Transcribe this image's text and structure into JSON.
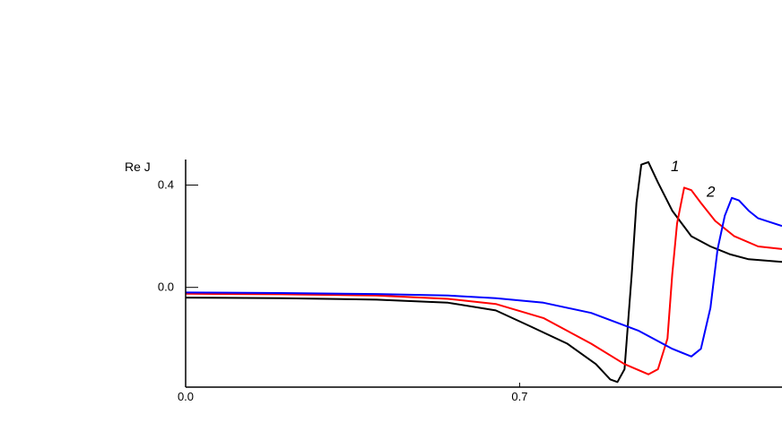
{
  "chart_data": {
    "type": "line",
    "ylabel": "Re J",
    "xlabel": "",
    "xlim": [
      0.0,
      1.25
    ],
    "ylim": [
      -0.39,
      0.5
    ],
    "x_ticks": [
      "0.0",
      "0.7"
    ],
    "x_tick_values": [
      0.0,
      0.7
    ],
    "y_ticks": [
      "0.4",
      "0.0"
    ],
    "y_tick_values": [
      0.4,
      0.0
    ],
    "grid": false,
    "series": [
      {
        "name": "1",
        "color": "#000000",
        "points": [
          [
            0.0,
            -0.04
          ],
          [
            0.2,
            -0.042
          ],
          [
            0.4,
            -0.048
          ],
          [
            0.55,
            -0.06
          ],
          [
            0.65,
            -0.09
          ],
          [
            0.72,
            -0.15
          ],
          [
            0.8,
            -0.22
          ],
          [
            0.86,
            -0.3
          ],
          [
            0.89,
            -0.36
          ],
          [
            0.905,
            -0.37
          ],
          [
            0.92,
            -0.32
          ],
          [
            0.935,
            0.05
          ],
          [
            0.945,
            0.33
          ],
          [
            0.955,
            0.48
          ],
          [
            0.97,
            0.49
          ],
          [
            0.99,
            0.41
          ],
          [
            1.02,
            0.3
          ],
          [
            1.06,
            0.2
          ],
          [
            1.1,
            0.16
          ],
          [
            1.14,
            0.13
          ],
          [
            1.18,
            0.11
          ],
          [
            1.25,
            0.1
          ]
        ]
      },
      {
        "name": "2",
        "color": "#ff0000",
        "points": [
          [
            0.0,
            -0.025
          ],
          [
            0.2,
            -0.027
          ],
          [
            0.4,
            -0.032
          ],
          [
            0.55,
            -0.045
          ],
          [
            0.65,
            -0.065
          ],
          [
            0.75,
            -0.12
          ],
          [
            0.85,
            -0.22
          ],
          [
            0.92,
            -0.3
          ],
          [
            0.97,
            -0.34
          ],
          [
            0.99,
            -0.32
          ],
          [
            1.01,
            -0.2
          ],
          [
            1.02,
            0.05
          ],
          [
            1.03,
            0.25
          ],
          [
            1.045,
            0.39
          ],
          [
            1.06,
            0.38
          ],
          [
            1.08,
            0.33
          ],
          [
            1.11,
            0.26
          ],
          [
            1.15,
            0.2
          ],
          [
            1.2,
            0.16
          ],
          [
            1.25,
            0.15
          ]
        ]
      },
      {
        "name": "",
        "color": "#0000ff",
        "points": [
          [
            0.0,
            -0.02
          ],
          [
            0.2,
            -0.022
          ],
          [
            0.4,
            -0.026
          ],
          [
            0.55,
            -0.032
          ],
          [
            0.65,
            -0.042
          ],
          [
            0.75,
            -0.06
          ],
          [
            0.85,
            -0.1
          ],
          [
            0.95,
            -0.17
          ],
          [
            1.02,
            -0.24
          ],
          [
            1.06,
            -0.27
          ],
          [
            1.08,
            -0.24
          ],
          [
            1.1,
            -0.08
          ],
          [
            1.115,
            0.15
          ],
          [
            1.13,
            0.28
          ],
          [
            1.145,
            0.35
          ],
          [
            1.16,
            0.34
          ],
          [
            1.18,
            0.3
          ],
          [
            1.2,
            0.27
          ],
          [
            1.25,
            0.24
          ]
        ]
      }
    ]
  }
}
